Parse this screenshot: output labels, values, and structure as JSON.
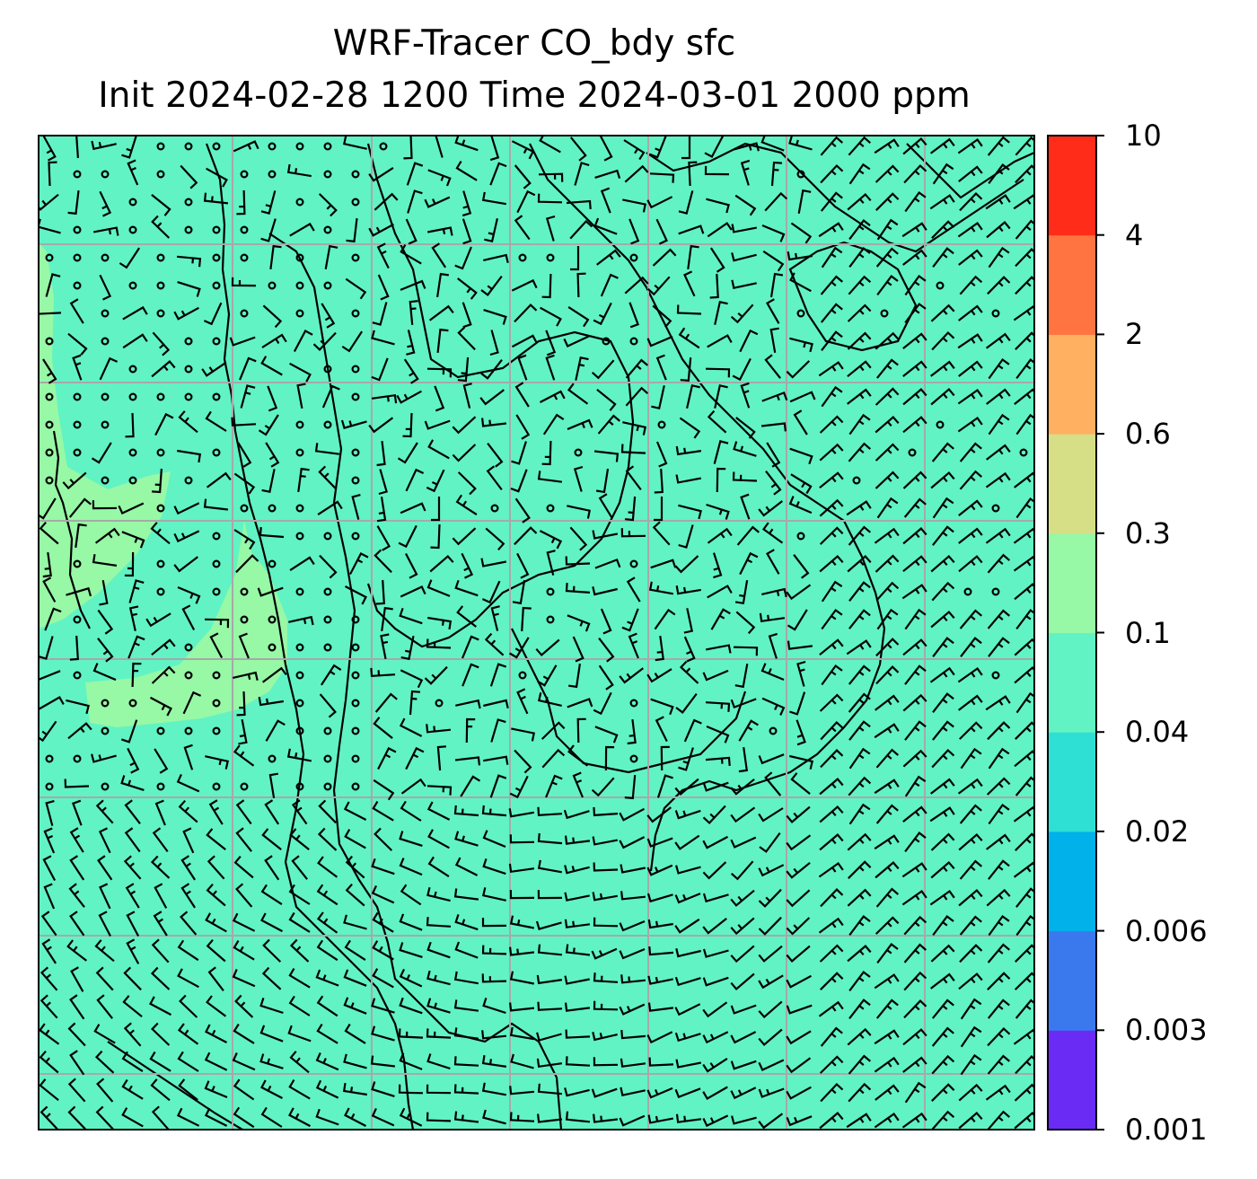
{
  "title": {
    "line1": "WRF-Tracer CO_bdy sfc",
    "line2": "Init 2024-02-28 1200 Time 2024-03-01 2000 ppm"
  },
  "colorbar": {
    "levels": [
      "0.001",
      "0.003",
      "0.006",
      "0.02",
      "0.04",
      "0.1",
      "0.3",
      "0.6",
      "2",
      "4",
      "10"
    ],
    "colors": [
      "#6a2bf5",
      "#3a78ee",
      "#00b1ea",
      "#2edfd3",
      "#61f3c3",
      "#97f8a6",
      "#d6df86",
      "#ffb060",
      "#ff7440",
      "#ff2c1a"
    ]
  },
  "map": {
    "dominant_field_color": "#61f3c3",
    "secondary_field_color": "#97f8a6",
    "gridline_color": "#a8a8a8",
    "coastline_color": "#000000",
    "symbols": [
      "wind-barbs",
      "calm-circles",
      "coastlines",
      "gridlines"
    ]
  }
}
